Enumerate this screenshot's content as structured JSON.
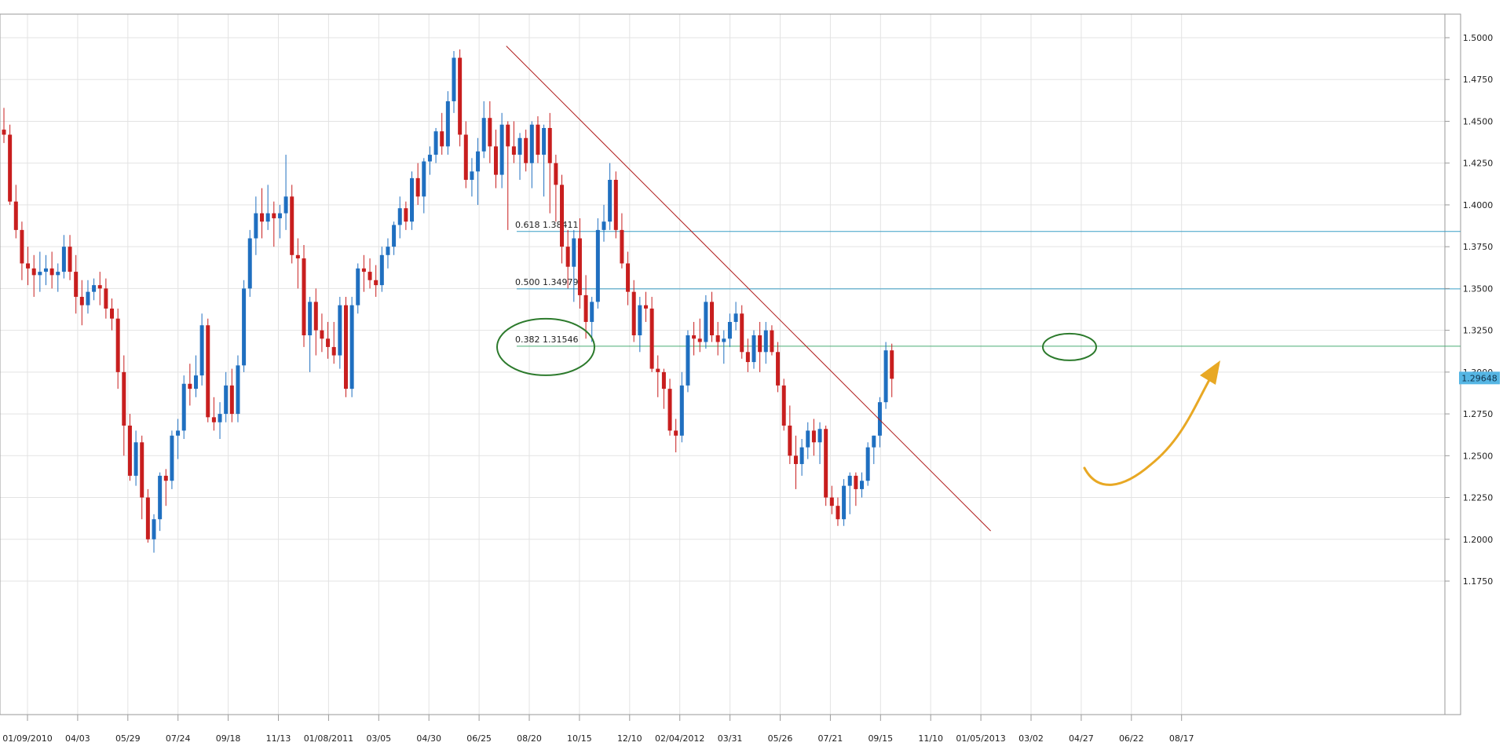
{
  "chart_data": {
    "type": "candlestick",
    "y_range": [
      1.16,
      1.515
    ],
    "x_labels": [
      "01/09/2010",
      "04/03",
      "05/29",
      "07/24",
      "09/18",
      "11/13",
      "01/08/2011",
      "03/05",
      "04/30",
      "06/25",
      "08/20",
      "10/15",
      "12/10",
      "02/04/2012",
      "03/31",
      "05/26",
      "07/21",
      "09/15",
      "11/10",
      "01/05/2013",
      "03/02",
      "04/27",
      "06/22",
      "08/17"
    ],
    "y_ticks": [
      "1.5000",
      "1.4750",
      "1.4500",
      "1.4250",
      "1.4000",
      "1.3750",
      "1.3500",
      "1.3250",
      "1.3000",
      "1.2750",
      "1.2500",
      "1.2250",
      "1.2000",
      "1.1750"
    ],
    "y_tick_values": [
      1.5,
      1.475,
      1.45,
      1.425,
      1.4,
      1.375,
      1.35,
      1.325,
      1.3,
      1.275,
      1.25,
      1.225,
      1.2,
      1.175
    ],
    "last_price": "1.29648",
    "last_price_value": 1.29648,
    "fib_levels": [
      {
        "ratio": "0.618",
        "price": "1.38411",
        "value": 1.38411,
        "color": "#3a9fc6"
      },
      {
        "ratio": "0.500",
        "price": "1.34979",
        "value": 1.34979,
        "color": "#3a9fc6"
      },
      {
        "ratio": "0.382",
        "price": "1.31546",
        "value": 1.31546,
        "color": "#4aae75"
      }
    ],
    "trendline": {
      "start_index": 84,
      "start_price": 1.495,
      "end_index": 165,
      "end_price": 1.205,
      "color": "#b01c1c"
    },
    "colors": {
      "up": "#1f6fc0",
      "down": "#c81e1e",
      "arrow": "#e8a824",
      "circle": "#2c7a2c"
    },
    "candles": [
      [
        1.445,
        1.458,
        1.437,
        1.442
      ],
      [
        1.442,
        1.448,
        1.4,
        1.402
      ],
      [
        1.402,
        1.412,
        1.38,
        1.385
      ],
      [
        1.385,
        1.39,
        1.355,
        1.365
      ],
      [
        1.365,
        1.375,
        1.352,
        1.362
      ],
      [
        1.362,
        1.37,
        1.345,
        1.358
      ],
      [
        1.358,
        1.372,
        1.348,
        1.36
      ],
      [
        1.36,
        1.37,
        1.352,
        1.362
      ],
      [
        1.362,
        1.372,
        1.35,
        1.358
      ],
      [
        1.358,
        1.365,
        1.348,
        1.36
      ],
      [
        1.36,
        1.382,
        1.356,
        1.375
      ],
      [
        1.375,
        1.382,
        1.355,
        1.36
      ],
      [
        1.36,
        1.37,
        1.335,
        1.345
      ],
      [
        1.345,
        1.355,
        1.328,
        1.34
      ],
      [
        1.34,
        1.355,
        1.335,
        1.348
      ],
      [
        1.348,
        1.356,
        1.343,
        1.352
      ],
      [
        1.352,
        1.36,
        1.34,
        1.35
      ],
      [
        1.35,
        1.356,
        1.332,
        1.338
      ],
      [
        1.338,
        1.344,
        1.325,
        1.332
      ],
      [
        1.332,
        1.338,
        1.29,
        1.3
      ],
      [
        1.3,
        1.31,
        1.25,
        1.268
      ],
      [
        1.268,
        1.275,
        1.235,
        1.238
      ],
      [
        1.238,
        1.265,
        1.232,
        1.258
      ],
      [
        1.258,
        1.262,
        1.212,
        1.225
      ],
      [
        1.225,
        1.23,
        1.198,
        1.2
      ],
      [
        1.2,
        1.215,
        1.192,
        1.212
      ],
      [
        1.212,
        1.24,
        1.205,
        1.238
      ],
      [
        1.238,
        1.242,
        1.22,
        1.235
      ],
      [
        1.235,
        1.265,
        1.23,
        1.262
      ],
      [
        1.262,
        1.272,
        1.248,
        1.265
      ],
      [
        1.265,
        1.298,
        1.26,
        1.293
      ],
      [
        1.293,
        1.305,
        1.28,
        1.29
      ],
      [
        1.29,
        1.31,
        1.285,
        1.298
      ],
      [
        1.298,
        1.335,
        1.292,
        1.328
      ],
      [
        1.328,
        1.332,
        1.27,
        1.273
      ],
      [
        1.273,
        1.285,
        1.265,
        1.27
      ],
      [
        1.27,
        1.282,
        1.26,
        1.275
      ],
      [
        1.275,
        1.3,
        1.27,
        1.292
      ],
      [
        1.292,
        1.302,
        1.27,
        1.275
      ],
      [
        1.275,
        1.31,
        1.27,
        1.304
      ],
      [
        1.304,
        1.355,
        1.3,
        1.35
      ],
      [
        1.35,
        1.385,
        1.345,
        1.38
      ],
      [
        1.38,
        1.405,
        1.37,
        1.395
      ],
      [
        1.395,
        1.41,
        1.38,
        1.39
      ],
      [
        1.39,
        1.412,
        1.385,
        1.395
      ],
      [
        1.395,
        1.402,
        1.375,
        1.392
      ],
      [
        1.392,
        1.4,
        1.38,
        1.395
      ],
      [
        1.395,
        1.43,
        1.385,
        1.405
      ],
      [
        1.405,
        1.412,
        1.365,
        1.37
      ],
      [
        1.37,
        1.38,
        1.35,
        1.368
      ],
      [
        1.368,
        1.376,
        1.315,
        1.322
      ],
      [
        1.322,
        1.345,
        1.3,
        1.342
      ],
      [
        1.342,
        1.35,
        1.31,
        1.325
      ],
      [
        1.325,
        1.335,
        1.312,
        1.32
      ],
      [
        1.32,
        1.33,
        1.308,
        1.315
      ],
      [
        1.315,
        1.33,
        1.305,
        1.31
      ],
      [
        1.31,
        1.345,
        1.302,
        1.34
      ],
      [
        1.34,
        1.345,
        1.285,
        1.29
      ],
      [
        1.29,
        1.345,
        1.285,
        1.34
      ],
      [
        1.34,
        1.365,
        1.335,
        1.362
      ],
      [
        1.362,
        1.37,
        1.348,
        1.36
      ],
      [
        1.36,
        1.368,
        1.35,
        1.355
      ],
      [
        1.355,
        1.364,
        1.345,
        1.352
      ],
      [
        1.352,
        1.375,
        1.348,
        1.37
      ],
      [
        1.37,
        1.38,
        1.362,
        1.375
      ],
      [
        1.375,
        1.39,
        1.37,
        1.388
      ],
      [
        1.388,
        1.405,
        1.38,
        1.398
      ],
      [
        1.398,
        1.402,
        1.385,
        1.39
      ],
      [
        1.39,
        1.42,
        1.385,
        1.416
      ],
      [
        1.416,
        1.425,
        1.4,
        1.405
      ],
      [
        1.405,
        1.428,
        1.395,
        1.426
      ],
      [
        1.426,
        1.435,
        1.418,
        1.43
      ],
      [
        1.43,
        1.446,
        1.425,
        1.444
      ],
      [
        1.444,
        1.455,
        1.43,
        1.435
      ],
      [
        1.435,
        1.468,
        1.43,
        1.462
      ],
      [
        1.462,
        1.492,
        1.455,
        1.488
      ],
      [
        1.488,
        1.493,
        1.435,
        1.442
      ],
      [
        1.442,
        1.45,
        1.41,
        1.415
      ],
      [
        1.415,
        1.428,
        1.405,
        1.42
      ],
      [
        1.42,
        1.44,
        1.4,
        1.432
      ],
      [
        1.432,
        1.462,
        1.428,
        1.452
      ],
      [
        1.452,
        1.462,
        1.425,
        1.435
      ],
      [
        1.435,
        1.445,
        1.41,
        1.418
      ],
      [
        1.418,
        1.455,
        1.41,
        1.448
      ],
      [
        1.448,
        1.45,
        1.385,
        1.435
      ],
      [
        1.435,
        1.45,
        1.425,
        1.43
      ],
      [
        1.43,
        1.443,
        1.415,
        1.44
      ],
      [
        1.44,
        1.445,
        1.42,
        1.425
      ],
      [
        1.425,
        1.45,
        1.41,
        1.448
      ],
      [
        1.448,
        1.453,
        1.425,
        1.43
      ],
      [
        1.43,
        1.448,
        1.405,
        1.446
      ],
      [
        1.446,
        1.455,
        1.395,
        1.425
      ],
      [
        1.425,
        1.43,
        1.39,
        1.412
      ],
      [
        1.412,
        1.418,
        1.365,
        1.375
      ],
      [
        1.375,
        1.385,
        1.35,
        1.363
      ],
      [
        1.363,
        1.385,
        1.342,
        1.38
      ],
      [
        1.38,
        1.392,
        1.338,
        1.346
      ],
      [
        1.346,
        1.358,
        1.32,
        1.33
      ],
      [
        1.33,
        1.345,
        1.318,
        1.342
      ],
      [
        1.342,
        1.392,
        1.338,
        1.385
      ],
      [
        1.385,
        1.4,
        1.378,
        1.39
      ],
      [
        1.39,
        1.425,
        1.385,
        1.415
      ],
      [
        1.415,
        1.42,
        1.38,
        1.385
      ],
      [
        1.385,
        1.395,
        1.362,
        1.365
      ],
      [
        1.365,
        1.372,
        1.34,
        1.348
      ],
      [
        1.348,
        1.355,
        1.318,
        1.322
      ],
      [
        1.322,
        1.345,
        1.312,
        1.34
      ],
      [
        1.34,
        1.348,
        1.33,
        1.338
      ],
      [
        1.338,
        1.345,
        1.3,
        1.302
      ],
      [
        1.302,
        1.31,
        1.285,
        1.3
      ],
      [
        1.3,
        1.302,
        1.278,
        1.29
      ],
      [
        1.29,
        1.296,
        1.262,
        1.265
      ],
      [
        1.265,
        1.272,
        1.252,
        1.262
      ],
      [
        1.262,
        1.3,
        1.258,
        1.292
      ],
      [
        1.292,
        1.325,
        1.288,
        1.322
      ],
      [
        1.322,
        1.33,
        1.31,
        1.32
      ],
      [
        1.32,
        1.332,
        1.312,
        1.318
      ],
      [
        1.318,
        1.346,
        1.314,
        1.342
      ],
      [
        1.342,
        1.348,
        1.318,
        1.322
      ],
      [
        1.322,
        1.33,
        1.31,
        1.318
      ],
      [
        1.318,
        1.325,
        1.305,
        1.32
      ],
      [
        1.32,
        1.335,
        1.315,
        1.33
      ],
      [
        1.33,
        1.342,
        1.325,
        1.335
      ],
      [
        1.335,
        1.34,
        1.308,
        1.312
      ],
      [
        1.312,
        1.32,
        1.3,
        1.306
      ],
      [
        1.306,
        1.325,
        1.302,
        1.322
      ],
      [
        1.322,
        1.33,
        1.3,
        1.312
      ],
      [
        1.312,
        1.33,
        1.305,
        1.325
      ],
      [
        1.325,
        1.328,
        1.31,
        1.312
      ],
      [
        1.312,
        1.318,
        1.288,
        1.292
      ],
      [
        1.292,
        1.296,
        1.265,
        1.268
      ],
      [
        1.268,
        1.28,
        1.245,
        1.25
      ],
      [
        1.25,
        1.262,
        1.23,
        1.245
      ],
      [
        1.245,
        1.26,
        1.238,
        1.255
      ],
      [
        1.255,
        1.27,
        1.248,
        1.265
      ],
      [
        1.265,
        1.272,
        1.25,
        1.258
      ],
      [
        1.258,
        1.27,
        1.245,
        1.266
      ],
      [
        1.266,
        1.268,
        1.22,
        1.225
      ],
      [
        1.225,
        1.232,
        1.215,
        1.22
      ],
      [
        1.22,
        1.225,
        1.208,
        1.212
      ],
      [
        1.212,
        1.236,
        1.208,
        1.232
      ],
      [
        1.232,
        1.24,
        1.215,
        1.238
      ],
      [
        1.238,
        1.24,
        1.22,
        1.23
      ],
      [
        1.23,
        1.24,
        1.225,
        1.235
      ],
      [
        1.235,
        1.258,
        1.232,
        1.255
      ],
      [
        1.255,
        1.262,
        1.245,
        1.262
      ],
      [
        1.262,
        1.285,
        1.255,
        1.282
      ],
      [
        1.282,
        1.318,
        1.278,
        1.313
      ],
      [
        1.313,
        1.317,
        1.285,
        1.296
      ]
    ]
  }
}
